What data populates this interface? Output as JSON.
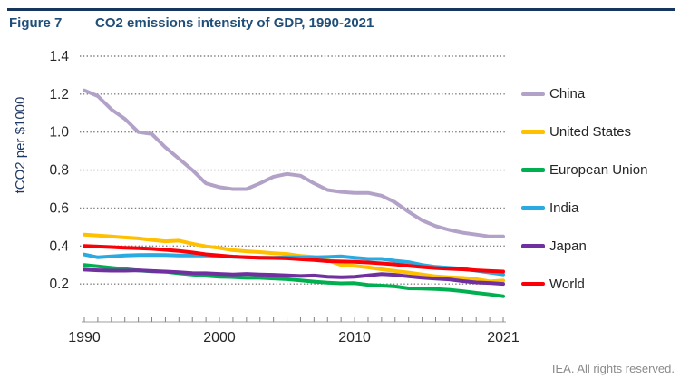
{
  "header": {
    "figure_label": "Figure 7",
    "title": "CO2 emissions intensity of GDP, 1990-2021"
  },
  "footer": {
    "credit": "IEA. All rights reserved."
  },
  "colors": {
    "title_text": "#1f4e79",
    "top_rule": "#17365d",
    "axis_text": "#262626",
    "axis_title_text": "#1f3864",
    "gridline": "#7f7f7f",
    "axis_line": "#bfbfbf",
    "tick": "#808080",
    "credit_text": "#8b8b8b"
  },
  "chart_data": {
    "type": "line",
    "title": "CO2 emissions intensity of GDP, 1990-2021",
    "xlabel": "",
    "ylabel": "tCO2 per $1000",
    "x_start": 1990,
    "x_end": 2021,
    "x_tick_labels": [
      "1990",
      "2000",
      "2010",
      "2021"
    ],
    "y_ticks": [
      0.2,
      0.4,
      0.6,
      0.8,
      1.0,
      1.2,
      1.4
    ],
    "ylim": [
      0,
      1.4
    ],
    "grid": "horizontal-dotted",
    "legend_position": "right",
    "series": [
      {
        "name": "China",
        "color": "#b3a2c7",
        "values": [
          1.22,
          1.19,
          1.12,
          1.07,
          1.0,
          0.99,
          0.92,
          0.86,
          0.8,
          0.73,
          0.71,
          0.7,
          0.7,
          0.73,
          0.765,
          0.78,
          0.77,
          0.73,
          0.695,
          0.685,
          0.68,
          0.68,
          0.665,
          0.63,
          0.58,
          0.535,
          0.505,
          0.485,
          0.47,
          0.46,
          0.45,
          0.45
        ]
      },
      {
        "name": "United States",
        "color": "#ffc000",
        "values": [
          0.46,
          0.455,
          0.45,
          0.445,
          0.44,
          0.432,
          0.425,
          0.428,
          0.412,
          0.398,
          0.39,
          0.378,
          0.372,
          0.368,
          0.362,
          0.358,
          0.348,
          0.342,
          0.325,
          0.3,
          0.295,
          0.287,
          0.277,
          0.268,
          0.26,
          0.25,
          0.24,
          0.235,
          0.232,
          0.225,
          0.213,
          0.218
        ]
      },
      {
        "name": "European Union",
        "color": "#00b050",
        "values": [
          0.3,
          0.293,
          0.285,
          0.278,
          0.271,
          0.266,
          0.264,
          0.256,
          0.25,
          0.243,
          0.238,
          0.236,
          0.232,
          0.232,
          0.229,
          0.225,
          0.219,
          0.212,
          0.207,
          0.203,
          0.204,
          0.195,
          0.191,
          0.187,
          0.177,
          0.176,
          0.173,
          0.169,
          0.162,
          0.153,
          0.145,
          0.135
        ]
      },
      {
        "name": "India",
        "color": "#29abe2",
        "values": [
          0.355,
          0.34,
          0.345,
          0.35,
          0.352,
          0.353,
          0.352,
          0.35,
          0.35,
          0.35,
          0.348,
          0.343,
          0.34,
          0.338,
          0.338,
          0.34,
          0.34,
          0.34,
          0.342,
          0.345,
          0.338,
          0.332,
          0.332,
          0.322,
          0.315,
          0.3,
          0.29,
          0.285,
          0.28,
          0.27,
          0.26,
          0.25
        ]
      },
      {
        "name": "Japan",
        "color": "#7030a0",
        "values": [
          0.275,
          0.272,
          0.27,
          0.27,
          0.272,
          0.268,
          0.265,
          0.262,
          0.257,
          0.256,
          0.253,
          0.25,
          0.253,
          0.25,
          0.248,
          0.245,
          0.242,
          0.244,
          0.238,
          0.235,
          0.238,
          0.245,
          0.252,
          0.248,
          0.24,
          0.233,
          0.228,
          0.224,
          0.215,
          0.208,
          0.205,
          0.2
        ]
      },
      {
        "name": "World",
        "color": "#fb0007",
        "values": [
          0.4,
          0.397,
          0.394,
          0.391,
          0.388,
          0.385,
          0.38,
          0.374,
          0.366,
          0.356,
          0.35,
          0.344,
          0.34,
          0.338,
          0.337,
          0.335,
          0.33,
          0.326,
          0.32,
          0.318,
          0.317,
          0.313,
          0.308,
          0.303,
          0.296,
          0.289,
          0.284,
          0.28,
          0.277,
          0.272,
          0.268,
          0.265
        ]
      }
    ]
  }
}
